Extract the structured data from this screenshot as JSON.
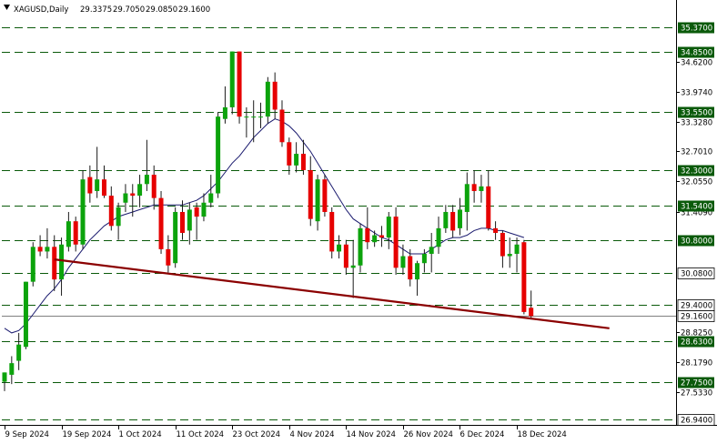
{
  "header": {
    "symbol": "XAGUSD,Daily",
    "open": "29.3375",
    "high": "29.7050",
    "low": "29.0850",
    "close": "29.1600"
  },
  "colors": {
    "bull": "#0ca30c",
    "bear": "#e60000",
    "wick": "#1a1a1a",
    "ma": "#1a1a6e",
    "trendline": "#8b0000",
    "level": "#0a5a0a",
    "axis": "#000000"
  },
  "chart_data": {
    "type": "candlestick",
    "instrument": "XAGUSD",
    "timeframe": "Daily",
    "ylim": [
      26.94,
      35.37
    ],
    "y_ticks": [
      "34.6200",
      "33.9740",
      "33.3280",
      "32.7010",
      "32.0550",
      "31.4090",
      "28.8250",
      "28.1790",
      "27.5330"
    ],
    "level_labels": [
      {
        "label": "35.3700",
        "value": 35.37,
        "highlight": true
      },
      {
        "label": "34.8500",
        "value": 34.85,
        "highlight": true
      },
      {
        "label": "33.5500",
        "value": 33.55,
        "highlight": true
      },
      {
        "label": "32.3000",
        "value": 32.3,
        "highlight": true
      },
      {
        "label": "31.5400",
        "value": 31.54,
        "highlight": true
      },
      {
        "label": "30.8000",
        "value": 30.8,
        "highlight": true
      },
      {
        "label": "30.0800",
        "value": 30.08,
        "highlight": false
      },
      {
        "label": "29.4000",
        "value": 29.4,
        "highlight": false
      },
      {
        "label": "28.6300",
        "value": 28.63,
        "highlight": true
      },
      {
        "label": "27.7500",
        "value": 27.75,
        "highlight": true
      },
      {
        "label": "26.9400",
        "value": 26.94,
        "highlight": false
      }
    ],
    "current_price": {
      "label": "29.1600",
      "value": 29.16
    },
    "x_ticks": [
      {
        "label": "9 Sep 2024",
        "index": 0
      },
      {
        "label": "19 Sep 2024",
        "index": 8
      },
      {
        "label": "1 Oct 2024",
        "index": 16
      },
      {
        "label": "11 Oct 2024",
        "index": 24
      },
      {
        "label": "23 Oct 2024",
        "index": 32
      },
      {
        "label": "4 Nov 2024",
        "index": 40
      },
      {
        "label": "14 Nov 2024",
        "index": 48
      },
      {
        "label": "26 Nov 2024",
        "index": 56
      },
      {
        "label": "6 Dec 2024",
        "index": 64
      },
      {
        "label": "18 Dec 2024",
        "index": 72
      }
    ],
    "candles": [
      {
        "o": 27.75,
        "h": 27.95,
        "l": 27.55,
        "c": 27.95
      },
      {
        "o": 27.9,
        "h": 28.3,
        "l": 27.7,
        "c": 28.15
      },
      {
        "o": 28.2,
        "h": 28.8,
        "l": 28.0,
        "c": 28.55
      },
      {
        "o": 28.5,
        "h": 29.9,
        "l": 28.45,
        "c": 29.9
      },
      {
        "o": 29.9,
        "h": 30.75,
        "l": 29.8,
        "c": 30.65
      },
      {
        "o": 30.65,
        "h": 30.9,
        "l": 30.45,
        "c": 30.55
      },
      {
        "o": 30.55,
        "h": 31.05,
        "l": 30.4,
        "c": 30.65
      },
      {
        "o": 30.65,
        "h": 30.9,
        "l": 29.7,
        "c": 29.95
      },
      {
        "o": 29.95,
        "h": 30.85,
        "l": 29.6,
        "c": 30.7
      },
      {
        "o": 30.65,
        "h": 31.4,
        "l": 30.55,
        "c": 31.2
      },
      {
        "o": 31.2,
        "h": 31.3,
        "l": 30.55,
        "c": 30.7
      },
      {
        "o": 30.7,
        "h": 32.3,
        "l": 30.6,
        "c": 32.1
      },
      {
        "o": 32.15,
        "h": 32.4,
        "l": 31.6,
        "c": 31.8
      },
      {
        "o": 31.85,
        "h": 32.8,
        "l": 31.7,
        "c": 32.1
      },
      {
        "o": 32.1,
        "h": 32.4,
        "l": 31.7,
        "c": 31.75
      },
      {
        "o": 31.75,
        "h": 31.95,
        "l": 31.0,
        "c": 31.1
      },
      {
        "o": 31.1,
        "h": 31.6,
        "l": 30.8,
        "c": 31.5
      },
      {
        "o": 31.6,
        "h": 32.0,
        "l": 31.4,
        "c": 31.8
      },
      {
        "o": 31.8,
        "h": 32.0,
        "l": 31.3,
        "c": 31.75
      },
      {
        "o": 31.75,
        "h": 32.2,
        "l": 31.5,
        "c": 32.0
      },
      {
        "o": 32.0,
        "h": 32.95,
        "l": 31.85,
        "c": 32.2
      },
      {
        "o": 32.2,
        "h": 32.4,
        "l": 31.45,
        "c": 31.7
      },
      {
        "o": 31.7,
        "h": 31.85,
        "l": 30.5,
        "c": 30.6
      },
      {
        "o": 30.6,
        "h": 30.9,
        "l": 30.1,
        "c": 30.25
      },
      {
        "o": 30.3,
        "h": 31.5,
        "l": 30.2,
        "c": 31.4
      },
      {
        "o": 31.4,
        "h": 31.65,
        "l": 30.8,
        "c": 30.95
      },
      {
        "o": 31.0,
        "h": 31.6,
        "l": 30.7,
        "c": 31.45
      },
      {
        "o": 31.5,
        "h": 31.6,
        "l": 30.8,
        "c": 31.3
      },
      {
        "o": 31.3,
        "h": 31.8,
        "l": 31.2,
        "c": 31.6
      },
      {
        "o": 31.6,
        "h": 32.2,
        "l": 31.5,
        "c": 31.8
      },
      {
        "o": 31.8,
        "h": 33.55,
        "l": 31.7,
        "c": 33.45
      },
      {
        "o": 33.4,
        "h": 34.1,
        "l": 33.3,
        "c": 33.65
      },
      {
        "o": 33.65,
        "h": 34.85,
        "l": 33.5,
        "c": 34.85
      },
      {
        "o": 34.85,
        "h": 34.85,
        "l": 33.3,
        "c": 33.45
      },
      {
        "o": 33.45,
        "h": 33.65,
        "l": 33.0,
        "c": 33.45
      },
      {
        "o": 33.45,
        "h": 33.8,
        "l": 32.9,
        "c": 33.45
      },
      {
        "o": 33.45,
        "h": 33.75,
        "l": 33.2,
        "c": 33.45
      },
      {
        "o": 33.45,
        "h": 34.3,
        "l": 33.3,
        "c": 34.2
      },
      {
        "o": 34.2,
        "h": 34.4,
        "l": 33.4,
        "c": 33.6
      },
      {
        "o": 33.6,
        "h": 33.8,
        "l": 32.8,
        "c": 32.9
      },
      {
        "o": 32.9,
        "h": 33.0,
        "l": 32.2,
        "c": 32.4
      },
      {
        "o": 32.4,
        "h": 32.9,
        "l": 32.25,
        "c": 32.65
      },
      {
        "o": 32.65,
        "h": 32.95,
        "l": 32.2,
        "c": 32.3
      },
      {
        "o": 32.3,
        "h": 32.6,
        "l": 31.1,
        "c": 31.25
      },
      {
        "o": 31.2,
        "h": 32.2,
        "l": 31.0,
        "c": 32.1
      },
      {
        "o": 32.1,
        "h": 32.2,
        "l": 31.3,
        "c": 31.4
      },
      {
        "o": 31.4,
        "h": 31.5,
        "l": 30.4,
        "c": 30.55
      },
      {
        "o": 30.55,
        "h": 30.9,
        "l": 30.4,
        "c": 30.7
      },
      {
        "o": 30.7,
        "h": 30.8,
        "l": 30.05,
        "c": 30.2
      },
      {
        "o": 30.2,
        "h": 30.8,
        "l": 29.55,
        "c": 30.25
      },
      {
        "o": 30.25,
        "h": 31.15,
        "l": 30.1,
        "c": 31.05
      },
      {
        "o": 31.05,
        "h": 31.5,
        "l": 30.6,
        "c": 30.75
      },
      {
        "o": 30.75,
        "h": 31.0,
        "l": 30.65,
        "c": 30.9
      },
      {
        "o": 30.9,
        "h": 31.1,
        "l": 30.65,
        "c": 30.85
      },
      {
        "o": 30.85,
        "h": 31.4,
        "l": 30.6,
        "c": 31.3
      },
      {
        "o": 31.3,
        "h": 31.5,
        "l": 30.05,
        "c": 30.2
      },
      {
        "o": 30.2,
        "h": 30.7,
        "l": 30.05,
        "c": 30.45
      },
      {
        "o": 30.45,
        "h": 30.6,
        "l": 29.8,
        "c": 29.95
      },
      {
        "o": 29.95,
        "h": 30.35,
        "l": 29.6,
        "c": 30.3
      },
      {
        "o": 30.3,
        "h": 30.6,
        "l": 30.1,
        "c": 30.5
      },
      {
        "o": 30.5,
        "h": 30.95,
        "l": 30.1,
        "c": 30.65
      },
      {
        "o": 30.65,
        "h": 31.3,
        "l": 30.5,
        "c": 31.05
      },
      {
        "o": 31.05,
        "h": 31.55,
        "l": 30.95,
        "c": 31.4
      },
      {
        "o": 31.4,
        "h": 31.55,
        "l": 30.85,
        "c": 31.0
      },
      {
        "o": 31.05,
        "h": 31.7,
        "l": 30.9,
        "c": 31.45
      },
      {
        "o": 31.4,
        "h": 32.25,
        "l": 31.0,
        "c": 32.0
      },
      {
        "o": 32.0,
        "h": 32.3,
        "l": 31.6,
        "c": 31.85
      },
      {
        "o": 31.85,
        "h": 32.2,
        "l": 31.6,
        "c": 31.95
      },
      {
        "o": 31.95,
        "h": 32.3,
        "l": 31.0,
        "c": 31.05
      },
      {
        "o": 31.05,
        "h": 31.2,
        "l": 30.8,
        "c": 30.95
      },
      {
        "o": 30.95,
        "h": 31.0,
        "l": 30.2,
        "c": 30.45
      },
      {
        "o": 30.45,
        "h": 30.85,
        "l": 30.2,
        "c": 30.5
      },
      {
        "o": 30.5,
        "h": 30.85,
        "l": 30.1,
        "c": 30.7
      },
      {
        "o": 30.75,
        "h": 30.8,
        "l": 29.2,
        "c": 29.25
      },
      {
        "o": 29.34,
        "h": 29.71,
        "l": 29.09,
        "c": 29.16
      }
    ],
    "moving_average": [
      28.9,
      28.8,
      28.85,
      29.0,
      29.2,
      29.4,
      29.6,
      29.75,
      29.95,
      30.2,
      30.4,
      30.6,
      30.8,
      30.95,
      31.1,
      31.2,
      31.3,
      31.35,
      31.4,
      31.45,
      31.5,
      31.55,
      31.55,
      31.55,
      31.55,
      31.55,
      31.6,
      31.65,
      31.75,
      31.9,
      32.05,
      32.25,
      32.45,
      32.6,
      32.8,
      33.0,
      33.15,
      33.3,
      33.4,
      33.35,
      33.25,
      33.1,
      32.9,
      32.7,
      32.45,
      32.2,
      31.95,
      31.7,
      31.45,
      31.25,
      31.15,
      31.05,
      30.95,
      30.85,
      30.8,
      30.7,
      30.6,
      30.5,
      30.5,
      30.5,
      30.6,
      30.7,
      30.8,
      30.85,
      30.85,
      30.9,
      31.0,
      31.05,
      31.05,
      31.0,
      31.0,
      30.95,
      30.9,
      30.85
    ],
    "trendline": [
      {
        "index": 7,
        "value": 30.38
      },
      {
        "index": 85,
        "value": 28.9
      }
    ]
  }
}
